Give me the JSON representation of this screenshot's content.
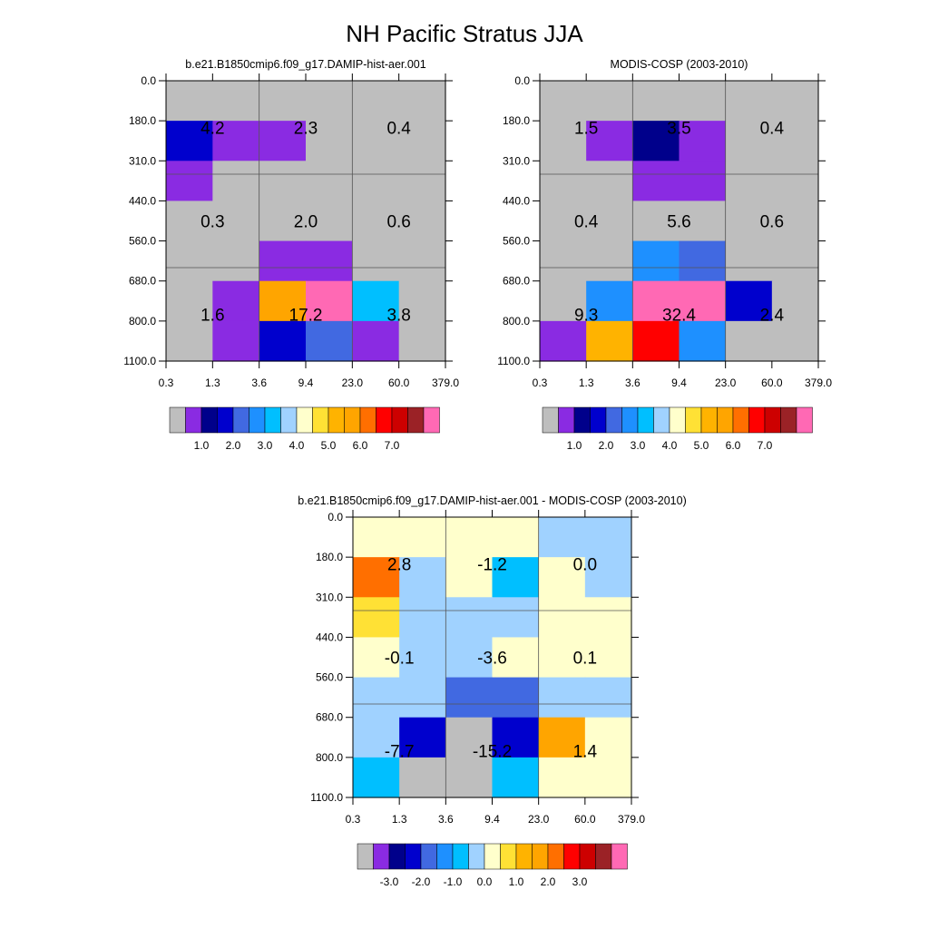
{
  "title": "NH Pacific Stratus JJA",
  "palettes": {
    "mean": [
      "#BEBEBE",
      "#8A2BE2",
      "#00008B",
      "#0000CD",
      "#4169E1",
      "#1E90FF",
      "#00BFFF",
      "#A0D2FF",
      "#FFFFCC",
      "#FFE135",
      "#FFB300",
      "#FFA500",
      "#FF6F00",
      "#FF0000",
      "#CD0000",
      "#9B2226",
      "#FF69B4"
    ],
    "diff": [
      "#BEBEBE",
      "#8A2BE2",
      "#00008B",
      "#0000CD",
      "#4169E1",
      "#1E90FF",
      "#00BFFF",
      "#A0D2FF",
      "#FFFFCC",
      "#FFE135",
      "#FFB300",
      "#FFA500",
      "#FF6F00",
      "#FF0000",
      "#CD0000",
      "#9B2226",
      "#FF69B4"
    ]
  },
  "chart_data": [
    {
      "type": "heatmap",
      "title": "b.e21.B1850cmip6.f09_g17.DAMIP-hist-aer.001",
      "x_ticks": [
        "0.3",
        "1.3",
        "3.6",
        "9.4",
        "23.0",
        "60.0",
        "379.0"
      ],
      "y_ticks": [
        "0.0",
        "180.0",
        "310.0",
        "440.0",
        "560.0",
        "680.0",
        "800.0",
        "1100.0"
      ],
      "grid": true,
      "colorbar": {
        "palette": "mean",
        "labels": [
          "1.0",
          "2.0",
          "3.0",
          "4.0",
          "5.0",
          "6.0",
          "7.0"
        ]
      },
      "cells": [
        [
          0,
          0,
          0,
          0,
          0,
          0
        ],
        [
          3,
          1,
          1,
          0,
          0,
          0
        ],
        [
          1,
          0,
          0,
          0,
          0,
          0
        ],
        [
          0,
          0,
          0,
          0,
          0,
          0
        ],
        [
          0,
          0,
          1,
          1,
          0,
          0
        ],
        [
          0,
          1,
          11,
          16,
          6,
          0
        ],
        [
          0,
          1,
          3,
          4,
          1,
          0
        ]
      ],
      "block_values": [
        [
          "4.2",
          "2.3",
          "0.4"
        ],
        [
          "0.3",
          "2.0",
          "0.6"
        ],
        [
          "1.6",
          "17.2",
          "3.8"
        ]
      ]
    },
    {
      "type": "heatmap",
      "title": "MODIS-COSP (2003-2010)",
      "x_ticks": [
        "0.3",
        "1.3",
        "3.6",
        "9.4",
        "23.0",
        "60.0",
        "379.0"
      ],
      "y_ticks": [
        "0.0",
        "180.0",
        "310.0",
        "440.0",
        "560.0",
        "680.0",
        "800.0",
        "1100.0"
      ],
      "grid": true,
      "colorbar": {
        "palette": "mean",
        "labels": [
          "1.0",
          "2.0",
          "3.0",
          "4.0",
          "5.0",
          "6.0",
          "7.0"
        ]
      },
      "cells": [
        [
          0,
          0,
          0,
          0,
          0,
          0
        ],
        [
          0,
          1,
          2,
          1,
          0,
          0
        ],
        [
          0,
          0,
          1,
          1,
          0,
          0
        ],
        [
          0,
          0,
          0,
          0,
          0,
          0
        ],
        [
          0,
          0,
          5,
          4,
          0,
          0
        ],
        [
          0,
          5,
          16,
          16,
          3,
          0
        ],
        [
          1,
          10,
          13,
          5,
          0,
          0
        ]
      ],
      "block_values": [
        [
          "1.5",
          "3.5",
          "0.4"
        ],
        [
          "0.4",
          "5.6",
          "0.6"
        ],
        [
          "9.3",
          "32.4",
          "2.4"
        ]
      ]
    },
    {
      "type": "heatmap",
      "title": "b.e21.B1850cmip6.f09_g17.DAMIP-hist-aer.001 - MODIS-COSP (2003-2010)",
      "x_ticks": [
        "0.3",
        "1.3",
        "3.6",
        "9.4",
        "23.0",
        "60.0",
        "379.0"
      ],
      "y_ticks": [
        "0.0",
        "180.0",
        "310.0",
        "440.0",
        "560.0",
        "680.0",
        "800.0",
        "1100.0"
      ],
      "grid": true,
      "colorbar": {
        "palette": "diff",
        "labels": [
          "-3.0",
          "-2.0",
          "-1.0",
          "0.0",
          "1.0",
          "2.0",
          "3.0"
        ]
      },
      "cells": [
        [
          8,
          8,
          8,
          8,
          7,
          7
        ],
        [
          12,
          7,
          8,
          6,
          8,
          7
        ],
        [
          9,
          7,
          7,
          7,
          8,
          8
        ],
        [
          8,
          7,
          7,
          8,
          8,
          8
        ],
        [
          7,
          7,
          4,
          4,
          7,
          7
        ],
        [
          7,
          3,
          0,
          3,
          11,
          8
        ],
        [
          6,
          0,
          0,
          6,
          8,
          8
        ]
      ],
      "block_values": [
        [
          "2.8",
          "-1.2",
          "0.0"
        ],
        [
          "-0.1",
          "-3.6",
          "0.1"
        ],
        [
          "-7.7",
          "-15.2",
          "1.4"
        ]
      ]
    }
  ]
}
